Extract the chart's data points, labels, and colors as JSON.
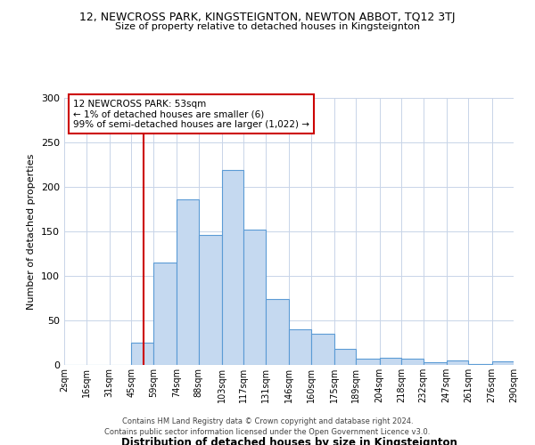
{
  "title_line1": "12, NEWCROSS PARK, KINGSTEIGNTON, NEWTON ABBOT, TQ12 3TJ",
  "title_line2": "Size of property relative to detached houses in Kingsteignton",
  "xlabel": "Distribution of detached houses by size in Kingsteignton",
  "ylabel": "Number of detached properties",
  "bin_labels": [
    "2sqm",
    "16sqm",
    "31sqm",
    "45sqm",
    "59sqm",
    "74sqm",
    "88sqm",
    "103sqm",
    "117sqm",
    "131sqm",
    "146sqm",
    "160sqm",
    "175sqm",
    "189sqm",
    "204sqm",
    "218sqm",
    "232sqm",
    "247sqm",
    "261sqm",
    "276sqm",
    "290sqm"
  ],
  "bar_heights": [
    0,
    0,
    0,
    25,
    115,
    186,
    146,
    219,
    152,
    74,
    40,
    35,
    18,
    7,
    8,
    7,
    3,
    5,
    1,
    4
  ],
  "bar_color": "#c5d9f0",
  "bar_edge_color": "#5b9bd5",
  "vline_x": 53,
  "vline_color": "#cc0000",
  "annotation_line1": "12 NEWCROSS PARK: 53sqm",
  "annotation_line2": "← 1% of detached houses are smaller (6)",
  "annotation_line3": "99% of semi-detached houses are larger (1,022) →",
  "annotation_box_color": "#cc0000",
  "ylim": [
    0,
    300
  ],
  "yticks": [
    0,
    50,
    100,
    150,
    200,
    250,
    300
  ],
  "footer_line1": "Contains HM Land Registry data © Crown copyright and database right 2024.",
  "footer_line2": "Contains public sector information licensed under the Open Government Licence v3.0.",
  "background_color": "#ffffff",
  "grid_color": "#c8d4e8"
}
